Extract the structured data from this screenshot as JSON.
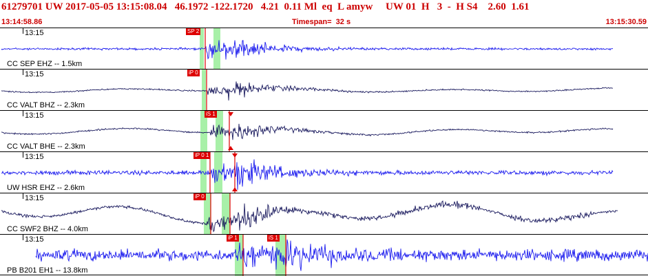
{
  "header": {
    "event_line": "61279701 UW 2017-05-05 13:15:08.04   46.1972 -122.1720   4.21  0.11 Ml  eq  L amyw     UW 01  H   3  -  H S4    2.60  1.61",
    "start_time": "13:14:58.86",
    "timespan": "Timespan=  32 s",
    "end_time": "13:15:30.59"
  },
  "colors": {
    "header_text": "#cc0000",
    "pick_marker": "#dd0000",
    "phase_window": "#a8f0a8",
    "trace_blue": "#1a1aee",
    "trace_navy": "#1a1a5e"
  },
  "panels": [
    {
      "tick": "13:15",
      "station": "CC SEP EHZ -- 1.5km",
      "color": "navy_blue",
      "picks": [
        "SP 2"
      ]
    },
    {
      "tick": "13:15",
      "station": "CC VALT BHZ -- 2.3km",
      "color": "navy",
      "picks": [
        "iP 0"
      ]
    },
    {
      "tick": "13:15",
      "station": "CC VALT BHE -- 2.3km",
      "color": "navy",
      "picks": [
        "iS 1"
      ]
    },
    {
      "tick": "13:15",
      "station": "UW HSR EHZ -- 2.6km",
      "color": "blue",
      "picks": [
        "iP 0 1"
      ]
    },
    {
      "tick": "13:15",
      "station": "CC SWF2 BHZ -- 4.0km",
      "color": "navy",
      "picks": [
        "iP 0"
      ]
    },
    {
      "tick": "13:15",
      "station": "PB B201 EH1 -- 13.8km",
      "color": "blue",
      "picks": [
        "iP 1",
        "iS 1"
      ]
    }
  ]
}
